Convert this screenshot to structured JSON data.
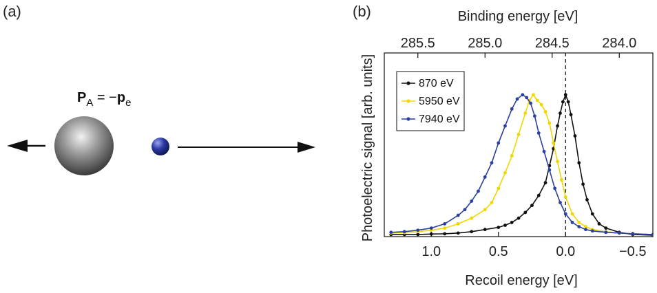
{
  "panel_a": {
    "label": "(a)",
    "equation": {
      "lhs_symbol": "P",
      "lhs_sub": "A",
      "equals": " = −",
      "rhs_symbol": "p",
      "rhs_sub": "e"
    }
  },
  "panel_b": {
    "label": "(b)"
  },
  "colors": {
    "black_series": "#111111",
    "yellow_series": "#f2d600",
    "blue_series": "#2b3f9e",
    "atom": "#555555",
    "electron": "#2c3aa5"
  },
  "chart_data": {
    "type": "line",
    "xlabel": "Recoil energy [eV]",
    "x2label": "Binding energy [eV]",
    "ylabel": "Photoelectric signal [arb. units]",
    "xlim": [
      1.35,
      -0.65
    ],
    "x_ticks": [
      "1.0",
      "0.5",
      "0.0",
      "−0.5"
    ],
    "x_tick_values": [
      1.0,
      0.5,
      0.0,
      -0.5
    ],
    "x2_ticks": [
      "285.5",
      "285.0",
      "284.5",
      "284.0"
    ],
    "x2_tick_values": [
      285.5,
      285.0,
      284.5,
      284.0
    ],
    "x2_reference": {
      "recoil": 0.0,
      "binding": 284.4
    },
    "ylim": [
      0,
      1.12
    ],
    "vline_x": 0.0,
    "legend_position": "top-left",
    "series": [
      {
        "name": "870 eV",
        "color": "#111111",
        "x": [
          1.3,
          1.2,
          1.1,
          1.0,
          0.9,
          0.8,
          0.7,
          0.6,
          0.5,
          0.45,
          0.4,
          0.35,
          0.3,
          0.25,
          0.2,
          0.15,
          0.12,
          0.09,
          0.06,
          0.04,
          0.02,
          0.0,
          -0.02,
          -0.04,
          -0.07,
          -0.1,
          -0.13,
          -0.16,
          -0.2,
          -0.25,
          -0.3,
          -0.4,
          -0.5,
          -0.65
        ],
        "y": [
          0.015,
          0.015,
          0.015,
          0.018,
          0.02,
          0.025,
          0.035,
          0.05,
          0.065,
          0.08,
          0.1,
          0.13,
          0.17,
          0.22,
          0.29,
          0.38,
          0.5,
          0.62,
          0.78,
          0.87,
          0.95,
          1.0,
          0.95,
          0.86,
          0.71,
          0.52,
          0.37,
          0.26,
          0.16,
          0.09,
          0.06,
          0.03,
          0.015,
          0.01
        ]
      },
      {
        "name": "5950 eV",
        "color": "#f2d600",
        "x": [
          1.3,
          1.2,
          1.1,
          1.0,
          0.9,
          0.8,
          0.7,
          0.6,
          0.55,
          0.5,
          0.45,
          0.4,
          0.35,
          0.3,
          0.27,
          0.24,
          0.21,
          0.18,
          0.15,
          0.12,
          0.09,
          0.06,
          0.03,
          0.0,
          -0.05,
          -0.1,
          -0.15,
          -0.2,
          -0.3,
          -0.4,
          -0.5,
          -0.65
        ],
        "y": [
          0.025,
          0.028,
          0.035,
          0.045,
          0.06,
          0.09,
          0.13,
          0.19,
          0.24,
          0.34,
          0.45,
          0.57,
          0.72,
          0.87,
          0.96,
          1.0,
          0.96,
          0.93,
          0.88,
          0.8,
          0.66,
          0.53,
          0.4,
          0.28,
          0.16,
          0.1,
          0.07,
          0.05,
          0.035,
          0.025,
          0.02,
          0.015
        ]
      },
      {
        "name": "7940 eV",
        "color": "#2b3f9e",
        "x": [
          1.3,
          1.2,
          1.1,
          1.0,
          0.9,
          0.8,
          0.75,
          0.7,
          0.65,
          0.6,
          0.55,
          0.5,
          0.45,
          0.4,
          0.36,
          0.32,
          0.29,
          0.26,
          0.23,
          0.2,
          0.16,
          0.12,
          0.08,
          0.04,
          0.0,
          -0.05,
          -0.1,
          -0.15,
          -0.2,
          -0.3,
          -0.4,
          -0.5,
          -0.65
        ],
        "y": [
          0.03,
          0.035,
          0.045,
          0.06,
          0.09,
          0.15,
          0.19,
          0.25,
          0.32,
          0.42,
          0.52,
          0.66,
          0.78,
          0.9,
          0.97,
          1.0,
          0.98,
          0.94,
          0.85,
          0.73,
          0.6,
          0.47,
          0.34,
          0.24,
          0.16,
          0.1,
          0.07,
          0.05,
          0.04,
          0.03,
          0.025,
          0.02,
          0.015
        ]
      }
    ]
  }
}
